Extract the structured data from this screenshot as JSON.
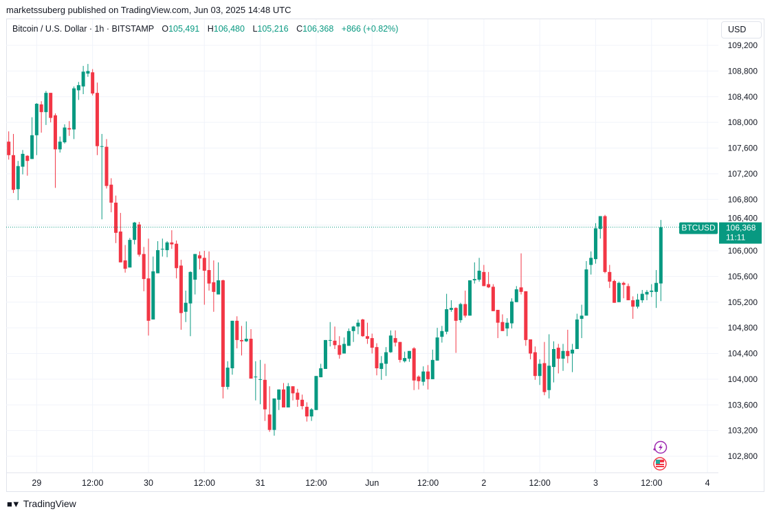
{
  "header": {
    "published": "marketssuberg published on TradingView.com, Jun 03, 2025 14:48 UTC"
  },
  "legend": {
    "symbol": "Bitcoin / U.S. Dollar · 1h · BITSTAMP",
    "o_label": "O",
    "o": "105,491",
    "h_label": "H",
    "h": "106,480",
    "l_label": "L",
    "l": "105,216",
    "c_label": "C",
    "c": "106,368",
    "change": "+866 (+0.82%)"
  },
  "currency_button": "USD",
  "price_label": {
    "ticker": "BTCUSD",
    "price": "106,368",
    "countdown": "11:11"
  },
  "footer": {
    "brand": "TradingView"
  },
  "icons": [
    "lightning-event-icon",
    "us-flag-economic-event-icon"
  ],
  "colors": {
    "up": "#089981",
    "down": "#F23645",
    "grid": "#f0f3fa",
    "last_price_line": "#089981",
    "event_purple": "#9c27b0"
  },
  "chart_data": {
    "type": "candlestick",
    "title": "Bitcoin / U.S. Dollar · 1h · BITSTAMP",
    "interval": "1h",
    "ylim": [
      102500,
      109450
    ],
    "y_ticks": [
      102800,
      103200,
      103600,
      104000,
      104400,
      104800,
      105200,
      105600,
      106000,
      106400,
      106800,
      107200,
      107600,
      108000,
      108400,
      108800,
      109200
    ],
    "y_tick_labels": [
      "102,800",
      "103,200",
      "103,600",
      "104,000",
      "104,400",
      "104,800",
      "105,200",
      "105,600",
      "106,000",
      "106,400",
      "106,800",
      "107,200",
      "107,600",
      "108,000",
      "108,400",
      "108,800",
      "109,200"
    ],
    "x_ticks": [
      {
        "label": "29",
        "t": "2025-05-29T00:00"
      },
      {
        "label": "12:00",
        "t": "2025-05-29T12:00"
      },
      {
        "label": "30",
        "t": "2025-05-30T00:00"
      },
      {
        "label": "12:00",
        "t": "2025-05-30T12:00"
      },
      {
        "label": "31",
        "t": "2025-05-31T00:00"
      },
      {
        "label": "12:00",
        "t": "2025-05-31T12:00"
      },
      {
        "label": "Jun",
        "t": "2025-06-01T00:00"
      },
      {
        "label": "12:00",
        "t": "2025-06-01T12:00"
      },
      {
        "label": "2",
        "t": "2025-06-02T00:00"
      },
      {
        "label": "12:00",
        "t": "2025-06-02T12:00"
      },
      {
        "label": "3",
        "t": "2025-06-03T00:00"
      },
      {
        "label": "12:00",
        "t": "2025-06-03T12:00"
      },
      {
        "label": "4",
        "t": "2025-06-04T00:00"
      }
    ],
    "last_price": 106368,
    "grid": true,
    "columns": [
      "time",
      "open",
      "high",
      "low",
      "close"
    ],
    "candles": [
      [
        "2025-05-28T18:00",
        107700,
        107860,
        107420,
        107490
      ],
      [
        "2025-05-28T19:00",
        107490,
        107820,
        106900,
        106950
      ],
      [
        "2025-05-28T20:00",
        106960,
        107400,
        106790,
        107320
      ],
      [
        "2025-05-28T21:00",
        107310,
        107570,
        107190,
        107510
      ],
      [
        "2025-05-28T22:00",
        107480,
        107490,
        107170,
        107400
      ],
      [
        "2025-05-28T23:00",
        107430,
        108080,
        107430,
        107800
      ],
      [
        "2025-05-29T00:00",
        107800,
        108300,
        107490,
        108290
      ],
      [
        "2025-05-29T01:00",
        108280,
        108330,
        107840,
        108160
      ],
      [
        "2025-05-29T02:00",
        108160,
        108490,
        107960,
        108460
      ],
      [
        "2025-05-29T03:00",
        108460,
        108460,
        108000,
        108070
      ],
      [
        "2025-05-29T04:00",
        108110,
        108140,
        106980,
        107580
      ],
      [
        "2025-05-29T05:00",
        107580,
        107780,
        107530,
        107700
      ],
      [
        "2025-05-29T06:00",
        107690,
        107970,
        107670,
        107920
      ],
      [
        "2025-05-29T07:00",
        107910,
        108020,
        107790,
        107890
      ],
      [
        "2025-05-29T08:00",
        107890,
        108560,
        107740,
        108530
      ],
      [
        "2025-05-29T09:00",
        108500,
        108630,
        108350,
        108580
      ],
      [
        "2025-05-29T10:00",
        108560,
        108880,
        108440,
        108790
      ],
      [
        "2025-05-29T11:00",
        108760,
        108910,
        108710,
        108800
      ],
      [
        "2025-05-29T12:00",
        108780,
        108830,
        108420,
        108450
      ],
      [
        "2025-05-29T13:00",
        108460,
        108620,
        107490,
        107630
      ],
      [
        "2025-05-29T14:00",
        107620,
        107820,
        106490,
        107630
      ],
      [
        "2025-05-29T15:00",
        107620,
        107740,
        106970,
        107010
      ],
      [
        "2025-05-29T16:00",
        107030,
        107130,
        106600,
        106750
      ],
      [
        "2025-05-29T17:00",
        106750,
        106860,
        106120,
        106280
      ],
      [
        "2025-05-29T18:00",
        106300,
        106590,
        105820,
        105820
      ],
      [
        "2025-05-29T19:00",
        105850,
        106090,
        105660,
        105720
      ],
      [
        "2025-05-29T20:00",
        105740,
        106200,
        105740,
        106170
      ],
      [
        "2025-05-29T21:00",
        106170,
        106450,
        106100,
        106440
      ],
      [
        "2025-05-29T22:00",
        106410,
        106450,
        105910,
        105940
      ],
      [
        "2025-05-29T23:00",
        105950,
        106060,
        105370,
        105560
      ],
      [
        "2025-05-30T00:00",
        105570,
        106190,
        104680,
        104910
      ],
      [
        "2025-05-30T01:00",
        104930,
        105910,
        104930,
        105680
      ],
      [
        "2025-05-30T02:00",
        105650,
        106150,
        105650,
        106010
      ],
      [
        "2025-05-30T03:00",
        106020,
        106190,
        105910,
        106030
      ],
      [
        "2025-05-30T04:00",
        106010,
        106150,
        105900,
        106130
      ],
      [
        "2025-05-30T05:00",
        106130,
        106320,
        106030,
        106100
      ],
      [
        "2025-05-30T06:00",
        106110,
        106160,
        105570,
        105730
      ],
      [
        "2025-05-30T07:00",
        105770,
        105860,
        104770,
        105030
      ],
      [
        "2025-05-30T08:00",
        105050,
        105380,
        104890,
        105190
      ],
      [
        "2025-05-30T09:00",
        105180,
        105680,
        104670,
        105670
      ],
      [
        "2025-05-30T10:00",
        105550,
        105950,
        105320,
        105950
      ],
      [
        "2025-05-30T11:00",
        105930,
        105990,
        105710,
        105880
      ],
      [
        "2025-05-30T12:00",
        105890,
        106000,
        105160,
        105690
      ],
      [
        "2025-05-30T13:00",
        105700,
        105990,
        105380,
        105490
      ],
      [
        "2025-05-30T14:00",
        105510,
        105850,
        105050,
        105360
      ],
      [
        "2025-05-30T15:00",
        105320,
        105820,
        105320,
        105540
      ],
      [
        "2025-05-30T16:00",
        105540,
        105550,
        103700,
        103880
      ],
      [
        "2025-05-30T17:00",
        103880,
        104280,
        103840,
        104180
      ],
      [
        "2025-05-30T18:00",
        104170,
        104910,
        104070,
        104910
      ],
      [
        "2025-05-30T19:00",
        104910,
        104980,
        104480,
        104610
      ],
      [
        "2025-05-30T20:00",
        104610,
        104830,
        104370,
        104590
      ],
      [
        "2025-05-30T21:00",
        104590,
        104900,
        104580,
        104630
      ],
      [
        "2025-05-30T22:00",
        104630,
        104780,
        104010,
        104010
      ],
      [
        "2025-05-30T23:00",
        104030,
        104280,
        103670,
        104040
      ],
      [
        "2025-05-31T00:00",
        103990,
        104300,
        103610,
        104000
      ],
      [
        "2025-05-31T01:00",
        103990,
        104240,
        103350,
        103530
      ],
      [
        "2025-05-31T02:00",
        103450,
        103890,
        103180,
        103210
      ],
      [
        "2025-05-31T03:00",
        103210,
        103700,
        103120,
        103700
      ],
      [
        "2025-05-31T04:00",
        103680,
        103840,
        103520,
        103840
      ],
      [
        "2025-05-31T05:00",
        103840,
        103940,
        103560,
        103560
      ],
      [
        "2025-05-31T06:00",
        103560,
        103940,
        103560,
        103890
      ],
      [
        "2025-05-31T07:00",
        103890,
        103890,
        103670,
        103780
      ],
      [
        "2025-05-31T08:00",
        103790,
        103850,
        103570,
        103680
      ],
      [
        "2025-05-31T09:00",
        103680,
        103760,
        103530,
        103580
      ],
      [
        "2025-05-31T10:00",
        103570,
        103640,
        103340,
        103420
      ],
      [
        "2025-05-31T11:00",
        103420,
        103550,
        103350,
        103530
      ],
      [
        "2025-05-31T12:00",
        103520,
        104050,
        103520,
        104050
      ],
      [
        "2025-05-31T13:00",
        104030,
        104240,
        104030,
        104170
      ],
      [
        "2025-05-31T14:00",
        104160,
        104610,
        104160,
        104610
      ],
      [
        "2025-05-31T15:00",
        104600,
        104890,
        104510,
        104610
      ],
      [
        "2025-05-31T16:00",
        104600,
        104820,
        104470,
        104530
      ],
      [
        "2025-05-31T17:00",
        104530,
        104670,
        104320,
        104380
      ],
      [
        "2025-05-31T18:00",
        104400,
        104650,
        104400,
        104550
      ],
      [
        "2025-05-31T19:00",
        104520,
        104790,
        104520,
        104750
      ],
      [
        "2025-05-31T20:00",
        104750,
        104830,
        104580,
        104820
      ],
      [
        "2025-05-31T21:00",
        104820,
        104930,
        104700,
        104880
      ],
      [
        "2025-05-31T22:00",
        104930,
        104940,
        104660,
        104670
      ],
      [
        "2025-05-31T23:00",
        104670,
        104880,
        104550,
        104630
      ],
      [
        "2025-06-01T00:00",
        104640,
        104710,
        104400,
        104490
      ],
      [
        "2025-06-01T01:00",
        104500,
        104560,
        104060,
        104170
      ],
      [
        "2025-06-01T02:00",
        104160,
        104360,
        103990,
        104250
      ],
      [
        "2025-06-01T03:00",
        104240,
        104500,
        104050,
        104420
      ],
      [
        "2025-06-01T04:00",
        104420,
        104760,
        104410,
        104680
      ],
      [
        "2025-06-01T05:00",
        104640,
        104760,
        104510,
        104570
      ],
      [
        "2025-06-01T06:00",
        104580,
        104580,
        104260,
        104300
      ],
      [
        "2025-06-01T07:00",
        104280,
        104430,
        104260,
        104330
      ],
      [
        "2025-06-01T08:00",
        104320,
        104440,
        104270,
        104440
      ],
      [
        "2025-06-01T09:00",
        104480,
        104500,
        103830,
        103980
      ],
      [
        "2025-06-01T10:00",
        104040,
        104060,
        103840,
        103970
      ],
      [
        "2025-06-01T11:00",
        103960,
        104200,
        103900,
        104120
      ],
      [
        "2025-06-01T12:00",
        104120,
        104220,
        103840,
        104000
      ],
      [
        "2025-06-01T13:00",
        104000,
        104460,
        104000,
        104300
      ],
      [
        "2025-06-01T14:00",
        104290,
        104800,
        104290,
        104650
      ],
      [
        "2025-06-01T15:00",
        104660,
        104830,
        104570,
        104750
      ],
      [
        "2025-06-01T16:00",
        104740,
        105330,
        104700,
        105090
      ],
      [
        "2025-06-01T17:00",
        105080,
        105230,
        105050,
        105110
      ],
      [
        "2025-06-01T18:00",
        105110,
        105120,
        104410,
        104910
      ],
      [
        "2025-06-01T19:00",
        104920,
        105190,
        104880,
        105170
      ],
      [
        "2025-06-01T20:00",
        105170,
        105380,
        104960,
        104990
      ],
      [
        "2025-06-01T21:00",
        104990,
        105540,
        104990,
        105540
      ],
      [
        "2025-06-01T22:00",
        105540,
        105820,
        105490,
        105560
      ],
      [
        "2025-06-01T23:00",
        105550,
        105890,
        105520,
        105690
      ],
      [
        "2025-06-02T00:00",
        105670,
        105780,
        105450,
        105450
      ],
      [
        "2025-06-02T01:00",
        105480,
        105670,
        105420,
        105430
      ],
      [
        "2025-06-02T02:00",
        105440,
        105480,
        105060,
        105060
      ],
      [
        "2025-06-02T03:00",
        105080,
        105080,
        104640,
        104880
      ],
      [
        "2025-06-02T04:00",
        104890,
        105010,
        104750,
        104750
      ],
      [
        "2025-06-02T05:00",
        104790,
        104950,
        104670,
        104880
      ],
      [
        "2025-06-02T06:00",
        104870,
        105260,
        104790,
        105210
      ],
      [
        "2025-06-02T07:00",
        105200,
        105450,
        105200,
        105400
      ],
      [
        "2025-06-02T08:00",
        105430,
        105960,
        105320,
        105360
      ],
      [
        "2025-06-02T09:00",
        105370,
        105370,
        104520,
        104610
      ],
      [
        "2025-06-02T10:00",
        104620,
        104620,
        104310,
        104400
      ],
      [
        "2025-06-02T11:00",
        104420,
        104510,
        103990,
        104050
      ],
      [
        "2025-06-02T12:00",
        104050,
        104310,
        103910,
        104240
      ],
      [
        "2025-06-02T13:00",
        104250,
        104580,
        103750,
        103800
      ],
      [
        "2025-06-02T14:00",
        103830,
        104700,
        103700,
        104210
      ],
      [
        "2025-06-02T15:00",
        104190,
        104590,
        103950,
        104470
      ],
      [
        "2025-06-02T16:00",
        104490,
        104550,
        104090,
        104320
      ],
      [
        "2025-06-02T17:00",
        104320,
        104550,
        104130,
        104440
      ],
      [
        "2025-06-02T18:00",
        104440,
        104770,
        104250,
        104360
      ],
      [
        "2025-06-02T19:00",
        104400,
        104550,
        104110,
        104460
      ],
      [
        "2025-06-02T20:00",
        104470,
        105020,
        104470,
        104930
      ],
      [
        "2025-06-02T21:00",
        104940,
        105160,
        104640,
        104990
      ],
      [
        "2025-06-02T22:00",
        104990,
        105840,
        104990,
        105710
      ],
      [
        "2025-06-02T23:00",
        105780,
        105990,
        105630,
        105890
      ],
      [
        "2025-06-03T00:00",
        105870,
        106430,
        105800,
        106350
      ],
      [
        "2025-06-03T01:00",
        106340,
        106540,
        106190,
        106540
      ],
      [
        "2025-06-03T02:00",
        106540,
        106560,
        105650,
        105670
      ],
      [
        "2025-06-03T03:00",
        105670,
        105780,
        105420,
        105520
      ],
      [
        "2025-06-03T04:00",
        105530,
        105550,
        105190,
        105190
      ],
      [
        "2025-06-03T05:00",
        105200,
        105520,
        105200,
        105500
      ],
      [
        "2025-06-03T06:00",
        105500,
        105520,
        105260,
        105470
      ],
      [
        "2025-06-03T07:00",
        105450,
        105490,
        105230,
        105230
      ],
      [
        "2025-06-03T08:00",
        105230,
        105290,
        104940,
        105130
      ],
      [
        "2025-06-03T09:00",
        105130,
        105330,
        105100,
        105240
      ],
      [
        "2025-06-03T10:00",
        105230,
        105390,
        105190,
        105330
      ],
      [
        "2025-06-03T11:00",
        105320,
        105390,
        105230,
        105360
      ],
      [
        "2025-06-03T12:00",
        105360,
        105480,
        105280,
        105380
      ],
      [
        "2025-06-03T13:00",
        105360,
        105700,
        105110,
        105500
      ],
      [
        "2025-06-03T14:00",
        105491,
        106480,
        105216,
        106368
      ]
    ]
  }
}
